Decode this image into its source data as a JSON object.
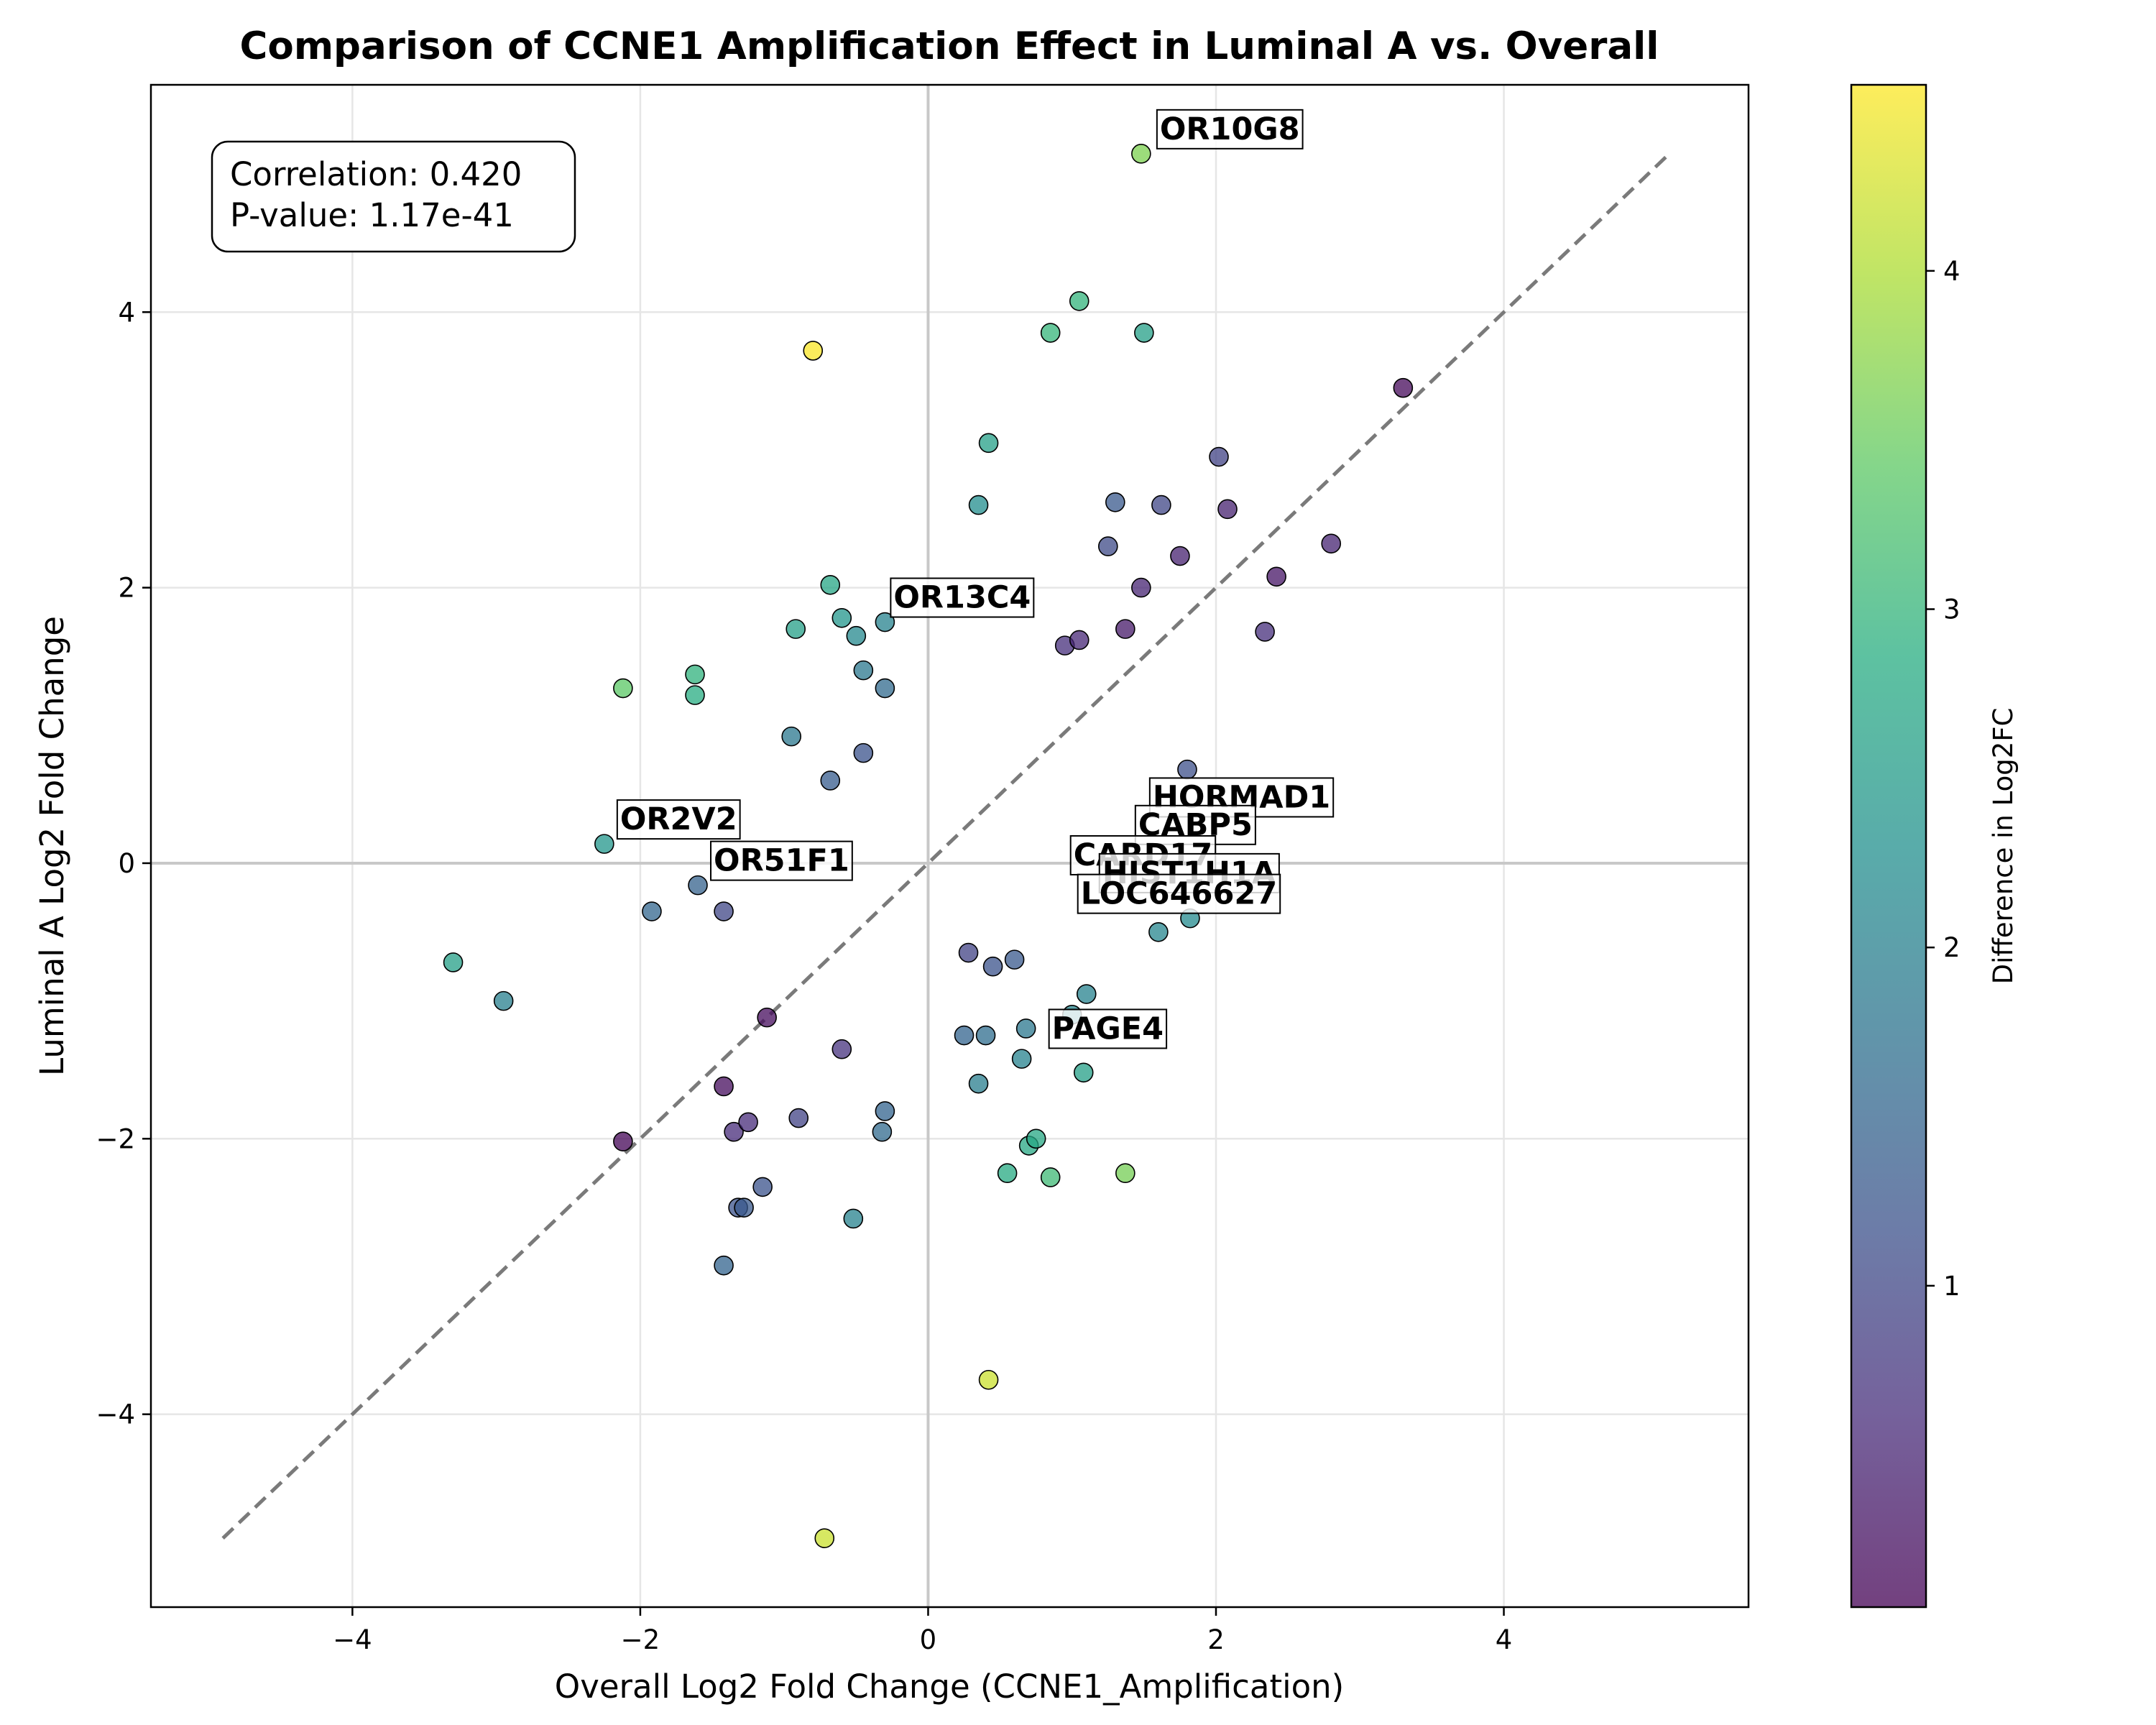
{
  "chart_data": {
    "type": "scatter",
    "title": "Comparison of CCNE1 Amplification Effect in Luminal A vs. Overall",
    "xlabel": "Overall Log2 Fold Change (CCNE1_Amplification)",
    "ylabel": "Luminal A Log2 Fold Change",
    "xlim": [
      -5.4,
      5.7
    ],
    "ylim": [
      -5.4,
      5.65
    ],
    "xticks": [
      -4,
      -2,
      0,
      2,
      4
    ],
    "yticks": [
      -4,
      -2,
      0,
      2,
      4
    ],
    "xtick_labels": [
      "−4",
      "−2",
      "0",
      "2",
      "4"
    ],
    "ytick_labels": [
      "−4",
      "−2",
      "0",
      "2",
      "4"
    ],
    "grid": true,
    "reference_line": {
      "style": "dashed",
      "color": "#7a7a7a",
      "from": [
        -4.9,
        -4.9
      ],
      "to": [
        5.15,
        5.15
      ]
    },
    "zero_lines": true,
    "colormap": "viridis",
    "colorbar": {
      "label": "Difference in Log2FC",
      "range": [
        0.05,
        4.55
      ],
      "ticks": [
        1,
        2,
        3,
        4
      ],
      "tick_labels": [
        "1",
        "2",
        "3",
        "4"
      ]
    },
    "stats_box": {
      "line1": "Correlation: 0.420",
      "line2": "P-value: 1.17e-41",
      "placement": "top-left"
    },
    "annotations": [
      {
        "text": "OR10G8",
        "x": 1.5,
        "y": 5.15
      },
      {
        "text": "OR13C4",
        "x": -0.35,
        "y": 1.75
      },
      {
        "text": "OR2V2",
        "x": -2.25,
        "y": 0.14
      },
      {
        "text": "OR51F1",
        "x": -1.6,
        "y": -0.16
      },
      {
        "text": "HORMAD1",
        "x": 1.45,
        "y": 0.3
      },
      {
        "text": "CABP5",
        "x": 1.35,
        "y": 0.1
      },
      {
        "text": "CARD17",
        "x": 0.9,
        "y": -0.12
      },
      {
        "text": "HIST1H1A",
        "x": 1.1,
        "y": -0.25
      },
      {
        "text": "LOC646627",
        "x": 0.95,
        "y": -0.4
      },
      {
        "text": "PAGE4",
        "x": 0.75,
        "y": -1.38
      }
    ],
    "series": [
      {
        "x": [
          1.48,
          -0.8,
          1.05,
          0.85,
          1.5,
          3.3,
          0.42,
          2.02,
          1.3,
          1.62,
          0.35,
          2.08,
          1.25,
          1.75,
          2.8,
          2.42,
          1.48,
          -0.68,
          -0.6,
          -0.3,
          -0.92,
          -0.5,
          1.37,
          2.34,
          0.95,
          1.05,
          -2.12,
          -1.62,
          -1.62,
          -0.45,
          -0.95,
          -0.3,
          -0.45,
          -0.68,
          -2.25,
          -1.6,
          -1.92,
          -1.42,
          -3.3,
          -2.95,
          -1.12,
          -0.6,
          -1.42,
          -1.35,
          -1.25,
          -1.32,
          -0.9,
          -0.3,
          -0.32,
          -1.15,
          -1.28,
          -1.42,
          -0.52,
          -2.12,
          0.42,
          -0.72,
          0.55,
          0.7,
          0.75,
          0.85,
          1.37,
          0.35,
          0.65,
          0.68,
          1.1,
          1.08,
          1.6,
          1.82,
          1.8,
          0.25,
          0.4,
          1.0,
          0.28,
          0.45,
          0.6
        ],
        "y": [
          5.15,
          3.72,
          4.08,
          3.85,
          3.85,
          3.45,
          3.05,
          2.95,
          2.62,
          2.6,
          2.6,
          2.57,
          2.3,
          2.23,
          2.32,
          2.08,
          2.0,
          2.02,
          1.78,
          1.75,
          1.7,
          1.65,
          1.7,
          1.68,
          1.58,
          1.62,
          1.27,
          1.37,
          1.22,
          1.4,
          0.92,
          1.27,
          0.8,
          0.6,
          0.14,
          -0.16,
          -0.35,
          -0.35,
          -0.72,
          -1.0,
          -1.12,
          -1.35,
          -1.62,
          -1.95,
          -1.88,
          -2.5,
          -1.85,
          -1.8,
          -1.95,
          -2.35,
          -2.5,
          -2.92,
          -2.58,
          -2.02,
          -3.75,
          -4.9,
          -2.25,
          -2.05,
          -2.0,
          -2.28,
          -2.25,
          -1.6,
          -1.42,
          -1.2,
          -0.95,
          -1.52,
          -0.5,
          -0.4,
          0.68,
          -1.25,
          -1.25,
          -1.1,
          -0.65,
          -0.75,
          -0.7
        ],
        "color_values": [
          3.65,
          4.52,
          2.98,
          3.0,
          2.6,
          0.15,
          2.6,
          0.95,
          1.3,
          1.0,
          2.25,
          0.45,
          1.05,
          0.45,
          0.5,
          0.3,
          0.5,
          2.7,
          2.4,
          2.05,
          2.6,
          2.15,
          0.35,
          0.65,
          0.65,
          0.55,
          3.4,
          2.95,
          2.85,
          1.85,
          1.85,
          1.6,
          1.2,
          1.35,
          2.4,
          1.45,
          1.55,
          1.0,
          2.6,
          2.0,
          0.2,
          0.7,
          0.2,
          0.6,
          0.6,
          1.2,
          0.95,
          1.5,
          1.6,
          1.2,
          1.3,
          1.5,
          2.05,
          0.1,
          4.2,
          4.2,
          2.8,
          2.75,
          2.75,
          3.1,
          3.6,
          1.95,
          2.05,
          1.85,
          2.05,
          2.6,
          2.1,
          2.2,
          1.15,
          1.5,
          1.65,
          2.1,
          0.95,
          1.2,
          1.3
        ]
      }
    ]
  }
}
